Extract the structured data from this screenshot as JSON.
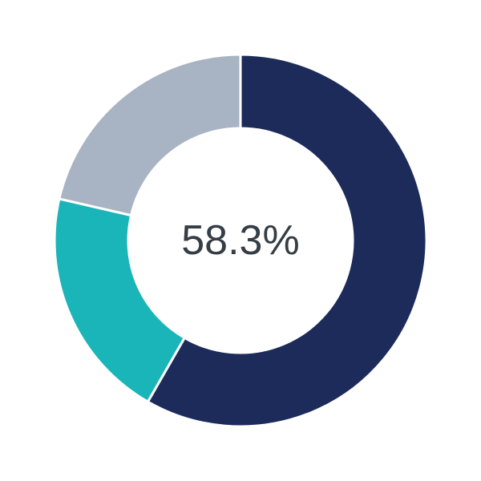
{
  "chart_data": {
    "type": "pie",
    "variant": "donut",
    "title": "",
    "center_label": "58.3%",
    "start": "top",
    "direction": "clockwise",
    "slices": [
      {
        "value": 58.3,
        "color": "#1c2b5a"
      },
      {
        "value": 20.3,
        "color": "#1ab5b8"
      },
      {
        "value": 21.4,
        "color": "#a8b3c3"
      }
    ],
    "legend": "none"
  }
}
